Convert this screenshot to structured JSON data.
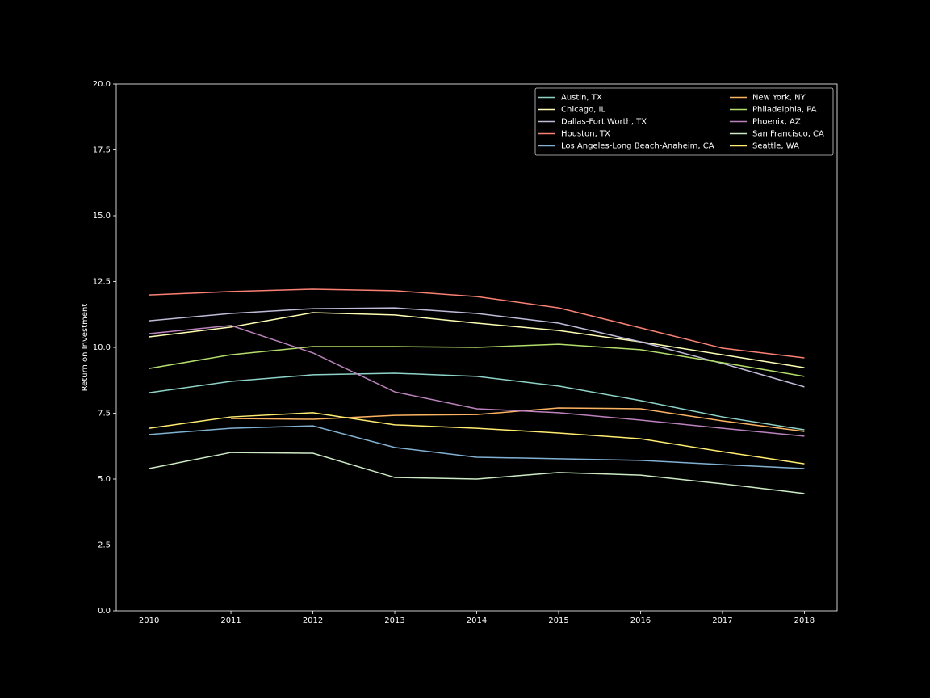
{
  "chart_data": {
    "type": "line",
    "ylabel": "Return on Investment",
    "x": [
      2010,
      2011,
      2012,
      2013,
      2014,
      2015,
      2016,
      2017,
      2018
    ],
    "xlim": [
      2009.6,
      2018.4
    ],
    "xticks": [
      2010,
      2011,
      2012,
      2013,
      2014,
      2015,
      2016,
      2017,
      2018
    ],
    "ylim": [
      0,
      20
    ],
    "yticks": [
      {
        "value": 0,
        "label": "0.0"
      },
      {
        "value": 2.5,
        "label": "2.5"
      },
      {
        "value": 5,
        "label": "5.0"
      },
      {
        "value": 7.5,
        "label": "7.5"
      },
      {
        "value": 10,
        "label": "10.0"
      },
      {
        "value": 12.5,
        "label": "12.5"
      },
      {
        "value": 15,
        "label": "15.0"
      },
      {
        "value": 17.5,
        "label": "17.5"
      },
      {
        "value": 20,
        "label": "20.0"
      }
    ],
    "grid": false,
    "legend": "upper right",
    "legend_columns": 2,
    "series": [
      {
        "name": "Austin, TX",
        "color": "#8dd3c7",
        "values": [
          8.28,
          8.71,
          8.96,
          9.02,
          8.9,
          8.53,
          7.98,
          7.36,
          6.87
        ]
      },
      {
        "name": "Chicago, IL",
        "color": "#feffb3",
        "values": [
          10.4,
          10.77,
          11.32,
          11.23,
          10.92,
          10.64,
          10.21,
          9.72,
          9.23
        ]
      },
      {
        "name": "Dallas-Fort Worth, TX",
        "color": "#bfbbd9",
        "values": [
          11.01,
          11.29,
          11.47,
          11.5,
          11.29,
          10.92,
          10.21,
          9.39,
          8.5
        ]
      },
      {
        "name": "Houston, TX",
        "color": "#fa8174",
        "values": [
          11.99,
          12.12,
          12.21,
          12.15,
          11.93,
          11.5,
          10.74,
          9.97,
          9.6
        ]
      },
      {
        "name": "Los Angeles-Long Beach-Anaheim, CA",
        "color": "#81b1d2",
        "values": [
          6.69,
          6.93,
          7.02,
          6.2,
          5.83,
          5.77,
          5.71,
          5.55,
          5.4
        ]
      },
      {
        "name": "New York, NY",
        "color": "#fdb462",
        "values": [
          null,
          7.3,
          7.27,
          7.42,
          7.45,
          7.7,
          7.67,
          7.21,
          6.81
        ]
      },
      {
        "name": "Philadelphia, PA",
        "color": "#b3de69",
        "values": [
          9.2,
          9.72,
          10.03,
          10.03,
          10.0,
          10.12,
          9.91,
          9.42,
          8.9
        ]
      },
      {
        "name": "Phoenix, AZ",
        "color": "#bc82bd",
        "values": [
          10.52,
          10.83,
          9.79,
          8.31,
          7.67,
          7.52,
          7.24,
          6.93,
          6.63
        ]
      },
      {
        "name": "San Francisco, CA",
        "color": "#ccebc4",
        "values": [
          5.4,
          6.01,
          5.98,
          5.06,
          5.0,
          5.25,
          5.15,
          4.82,
          4.45
        ]
      },
      {
        "name": "Seattle, WA",
        "color": "#ffed6f",
        "values": [
          6.93,
          7.36,
          7.52,
          7.06,
          6.93,
          6.75,
          6.53,
          6.04,
          5.58
        ]
      }
    ]
  }
}
